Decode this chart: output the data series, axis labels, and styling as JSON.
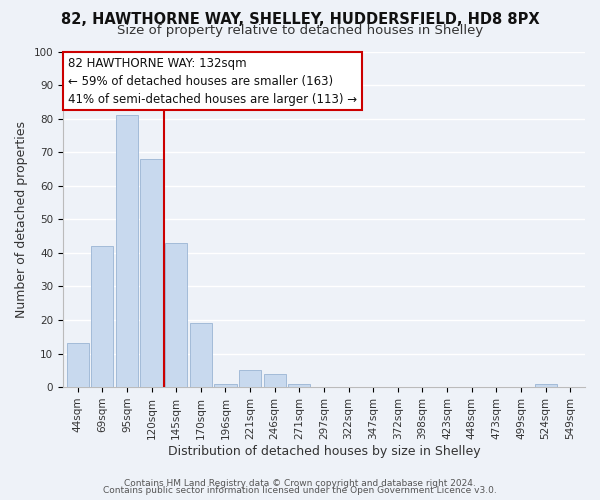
{
  "title": "82, HAWTHORNE WAY, SHELLEY, HUDDERSFIELD, HD8 8PX",
  "subtitle": "Size of property relative to detached houses in Shelley",
  "xlabel": "Distribution of detached houses by size in Shelley",
  "ylabel": "Number of detached properties",
  "categories": [
    "44sqm",
    "69sqm",
    "95sqm",
    "120sqm",
    "145sqm",
    "170sqm",
    "196sqm",
    "221sqm",
    "246sqm",
    "271sqm",
    "297sqm",
    "322sqm",
    "347sqm",
    "372sqm",
    "398sqm",
    "423sqm",
    "448sqm",
    "473sqm",
    "499sqm",
    "524sqm",
    "549sqm"
  ],
  "values": [
    13,
    42,
    81,
    68,
    43,
    19,
    1,
    5,
    4,
    1,
    0,
    0,
    0,
    0,
    0,
    0,
    0,
    0,
    0,
    1,
    0
  ],
  "bar_color": "#c8d9ee",
  "bar_edge_color": "#9ab4d4",
  "ylim": [
    0,
    100
  ],
  "yticks": [
    0,
    10,
    20,
    30,
    40,
    50,
    60,
    70,
    80,
    90,
    100
  ],
  "annotation_title": "82 HAWTHORNE WAY: 132sqm",
  "annotation_line1": "← 59% of detached houses are smaller (163)",
  "annotation_line2": "41% of semi-detached houses are larger (113) →",
  "footer1": "Contains HM Land Registry data © Crown copyright and database right 2024.",
  "footer2": "Contains public sector information licensed under the Open Government Licence v3.0.",
  "background_color": "#eef2f8",
  "grid_color": "#ffffff",
  "title_fontsize": 10.5,
  "subtitle_fontsize": 9.5,
  "axis_label_fontsize": 9,
  "tick_fontsize": 7.5,
  "annotation_fontsize": 8.5,
  "footer_fontsize": 6.5
}
